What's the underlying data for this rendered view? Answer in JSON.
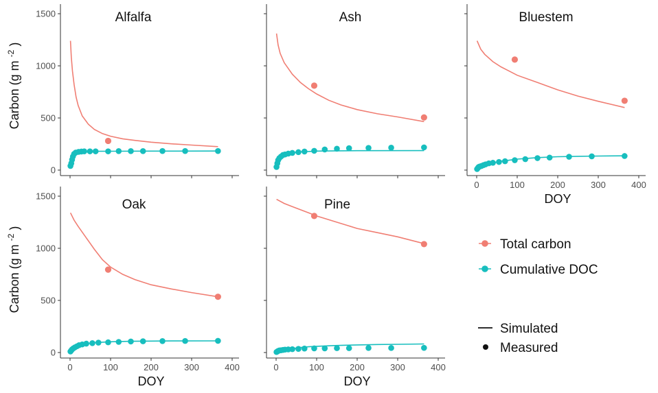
{
  "chart_data": {
    "type": "line",
    "ylabel_main": "Carbon (g m",
    "ylabel_sup": "-2",
    "ylabel_end": ")",
    "xlabel": "DOY",
    "xlim": [
      0,
      400
    ],
    "ylim": [
      0,
      1500
    ],
    "x_ticks": [
      0,
      100,
      200,
      300,
      400
    ],
    "y_ticks": [
      0,
      500,
      1000,
      1500
    ],
    "grid": false,
    "legend_position": "right",
    "colors": {
      "total": "#f07e73",
      "doc": "#17bebe",
      "axis": "#333333"
    },
    "legend": {
      "series": [
        {
          "key": "total",
          "label": "Total carbon"
        },
        {
          "key": "doc",
          "label": "Cumulative DOC"
        }
      ],
      "types": [
        {
          "key": "line",
          "label": "Simulated"
        },
        {
          "key": "point",
          "label": "Measured"
        }
      ]
    },
    "panels": [
      {
        "name": "Alfalfa",
        "simulated_total": [
          [
            1,
            1240
          ],
          [
            3,
            1085
          ],
          [
            6,
            950
          ],
          [
            10,
            820
          ],
          [
            15,
            700
          ],
          [
            20,
            620
          ],
          [
            30,
            520
          ],
          [
            45,
            440
          ],
          [
            60,
            390
          ],
          [
            80,
            350
          ],
          [
            100,
            325
          ],
          [
            130,
            300
          ],
          [
            160,
            285
          ],
          [
            200,
            268
          ],
          [
            250,
            252
          ],
          [
            300,
            240
          ],
          [
            365,
            225
          ]
        ],
        "simulated_doc": [
          [
            0,
            40
          ],
          [
            5,
            110
          ],
          [
            10,
            150
          ],
          [
            15,
            168
          ],
          [
            20,
            175
          ],
          [
            30,
            178
          ],
          [
            50,
            180
          ],
          [
            100,
            181
          ],
          [
            200,
            182
          ],
          [
            365,
            183
          ]
        ],
        "measured_total": [
          [
            94,
            280
          ]
        ],
        "measured_doc": [
          [
            1,
            40
          ],
          [
            3,
            65
          ],
          [
            5,
            100
          ],
          [
            7,
            130
          ],
          [
            10,
            155
          ],
          [
            14,
            168
          ],
          [
            21,
            175
          ],
          [
            28,
            178
          ],
          [
            35,
            180
          ],
          [
            49,
            180
          ],
          [
            63,
            180
          ],
          [
            94,
            180
          ],
          [
            120,
            182
          ],
          [
            150,
            182
          ],
          [
            180,
            182
          ],
          [
            228,
            183
          ],
          [
            284,
            183
          ],
          [
            365,
            183
          ]
        ]
      },
      {
        "name": "Ash",
        "simulated_total": [
          [
            1,
            1310
          ],
          [
            5,
            1200
          ],
          [
            10,
            1120
          ],
          [
            20,
            1030
          ],
          [
            40,
            920
          ],
          [
            60,
            840
          ],
          [
            80,
            780
          ],
          [
            100,
            730
          ],
          [
            130,
            670
          ],
          [
            160,
            625
          ],
          [
            200,
            580
          ],
          [
            250,
            540
          ],
          [
            300,
            510
          ],
          [
            365,
            465
          ]
        ],
        "simulated_doc": [
          [
            0,
            30
          ],
          [
            5,
            90
          ],
          [
            10,
            120
          ],
          [
            20,
            145
          ],
          [
            40,
            165
          ],
          [
            60,
            175
          ],
          [
            100,
            182
          ],
          [
            150,
            185
          ],
          [
            200,
            186
          ],
          [
            365,
            187
          ]
        ],
        "measured_total": [
          [
            94,
            810
          ],
          [
            365,
            505
          ]
        ],
        "measured_doc": [
          [
            1,
            30
          ],
          [
            3,
            65
          ],
          [
            5,
            95
          ],
          [
            8,
            115
          ],
          [
            12,
            130
          ],
          [
            17,
            145
          ],
          [
            22,
            150
          ],
          [
            30,
            158
          ],
          [
            40,
            165
          ],
          [
            55,
            172
          ],
          [
            70,
            178
          ],
          [
            94,
            185
          ],
          [
            120,
            198
          ],
          [
            150,
            205
          ],
          [
            180,
            210
          ],
          [
            228,
            213
          ],
          [
            284,
            215
          ],
          [
            365,
            218
          ]
        ]
      },
      {
        "name": "Bluestem",
        "simulated_total": [
          [
            1,
            1240
          ],
          [
            10,
            1160
          ],
          [
            20,
            1110
          ],
          [
            40,
            1040
          ],
          [
            60,
            990
          ],
          [
            80,
            950
          ],
          [
            100,
            910
          ],
          [
            150,
            840
          ],
          [
            200,
            770
          ],
          [
            250,
            710
          ],
          [
            300,
            660
          ],
          [
            365,
            600
          ]
        ],
        "simulated_doc": [
          [
            0,
            10
          ],
          [
            10,
            30
          ],
          [
            20,
            50
          ],
          [
            40,
            70
          ],
          [
            60,
            85
          ],
          [
            80,
            95
          ],
          [
            100,
            105
          ],
          [
            150,
            120
          ],
          [
            200,
            128
          ],
          [
            250,
            132
          ],
          [
            300,
            135
          ],
          [
            365,
            137
          ]
        ],
        "measured_total": [
          [
            94,
            1060
          ],
          [
            365,
            665
          ]
        ],
        "measured_doc": [
          [
            1,
            10
          ],
          [
            3,
            20
          ],
          [
            5,
            30
          ],
          [
            8,
            35
          ],
          [
            12,
            40
          ],
          [
            17,
            48
          ],
          [
            22,
            55
          ],
          [
            30,
            65
          ],
          [
            40,
            70
          ],
          [
            55,
            78
          ],
          [
            70,
            85
          ],
          [
            94,
            95
          ],
          [
            120,
            105
          ],
          [
            150,
            115
          ],
          [
            180,
            120
          ],
          [
            228,
            128
          ],
          [
            284,
            132
          ],
          [
            365,
            135
          ]
        ]
      },
      {
        "name": "Oak",
        "simulated_total": [
          [
            1,
            1340
          ],
          [
            10,
            1270
          ],
          [
            20,
            1210
          ],
          [
            40,
            1100
          ],
          [
            60,
            990
          ],
          [
            80,
            890
          ],
          [
            100,
            820
          ],
          [
            130,
            750
          ],
          [
            160,
            700
          ],
          [
            200,
            650
          ],
          [
            250,
            610
          ],
          [
            300,
            575
          ],
          [
            365,
            535
          ]
        ],
        "simulated_doc": [
          [
            0,
            10
          ],
          [
            5,
            30
          ],
          [
            10,
            45
          ],
          [
            20,
            65
          ],
          [
            40,
            85
          ],
          [
            60,
            95
          ],
          [
            100,
            103
          ],
          [
            150,
            108
          ],
          [
            200,
            110
          ],
          [
            250,
            111
          ],
          [
            365,
            112
          ]
        ],
        "measured_total": [
          [
            94,
            795
          ],
          [
            365,
            535
          ]
        ],
        "measured_doc": [
          [
            1,
            10
          ],
          [
            3,
            20
          ],
          [
            5,
            30
          ],
          [
            8,
            40
          ],
          [
            12,
            50
          ],
          [
            17,
            60
          ],
          [
            22,
            70
          ],
          [
            30,
            78
          ],
          [
            40,
            85
          ],
          [
            55,
            90
          ],
          [
            70,
            95
          ],
          [
            94,
            98
          ],
          [
            120,
            102
          ],
          [
            150,
            106
          ],
          [
            180,
            108
          ],
          [
            228,
            110
          ],
          [
            284,
            111
          ],
          [
            365,
            112
          ]
        ]
      },
      {
        "name": "Pine",
        "simulated_total": [
          [
            1,
            1470
          ],
          [
            20,
            1430
          ],
          [
            40,
            1400
          ],
          [
            60,
            1370
          ],
          [
            80,
            1340
          ],
          [
            100,
            1310
          ],
          [
            150,
            1250
          ],
          [
            200,
            1190
          ],
          [
            250,
            1150
          ],
          [
            300,
            1110
          ],
          [
            365,
            1045
          ]
        ],
        "simulated_doc": [
          [
            0,
            5
          ],
          [
            10,
            15
          ],
          [
            20,
            25
          ],
          [
            40,
            38
          ],
          [
            60,
            48
          ],
          [
            80,
            55
          ],
          [
            100,
            60
          ],
          [
            150,
            68
          ],
          [
            200,
            73
          ],
          [
            250,
            77
          ],
          [
            300,
            79
          ],
          [
            365,
            82
          ]
        ],
        "measured_total": [
          [
            94,
            1310
          ],
          [
            365,
            1040
          ]
        ],
        "measured_doc": [
          [
            1,
            5
          ],
          [
            3,
            10
          ],
          [
            5,
            15
          ],
          [
            8,
            20
          ],
          [
            12,
            22
          ],
          [
            17,
            25
          ],
          [
            22,
            28
          ],
          [
            30,
            30
          ],
          [
            40,
            32
          ],
          [
            55,
            35
          ],
          [
            70,
            38
          ],
          [
            94,
            40
          ],
          [
            120,
            40
          ],
          [
            150,
            42
          ],
          [
            180,
            42
          ],
          [
            228,
            44
          ],
          [
            284,
            44
          ],
          [
            365,
            45
          ]
        ]
      }
    ]
  }
}
